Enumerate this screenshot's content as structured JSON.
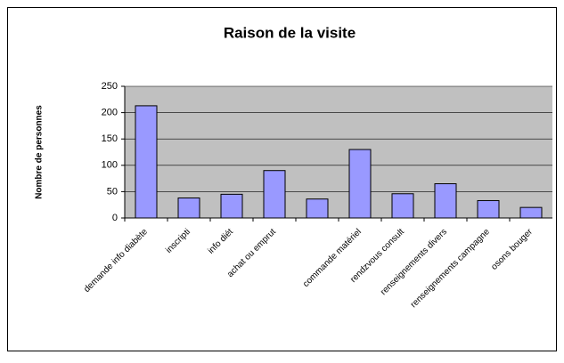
{
  "chart_data": {
    "type": "bar",
    "title": "Raison de la visite",
    "y_label": "Nombre de personnes",
    "categories": [
      "demande info diabète",
      "inscripti",
      "info diét",
      "achat ou emprut",
      null,
      "commande matériel",
      "rendzvous consult",
      "renseignements divers",
      "renseignements campagne",
      "osons bouger"
    ],
    "values": [
      213,
      38,
      45,
      90,
      36,
      130,
      46,
      65,
      33,
      20
    ],
    "color": "#9999ff",
    "plot_background": "#c0c0c0",
    "ylim": [
      0,
      250
    ],
    "yticks": [
      0,
      50,
      100,
      150,
      200,
      250
    ],
    "grid": true
  }
}
